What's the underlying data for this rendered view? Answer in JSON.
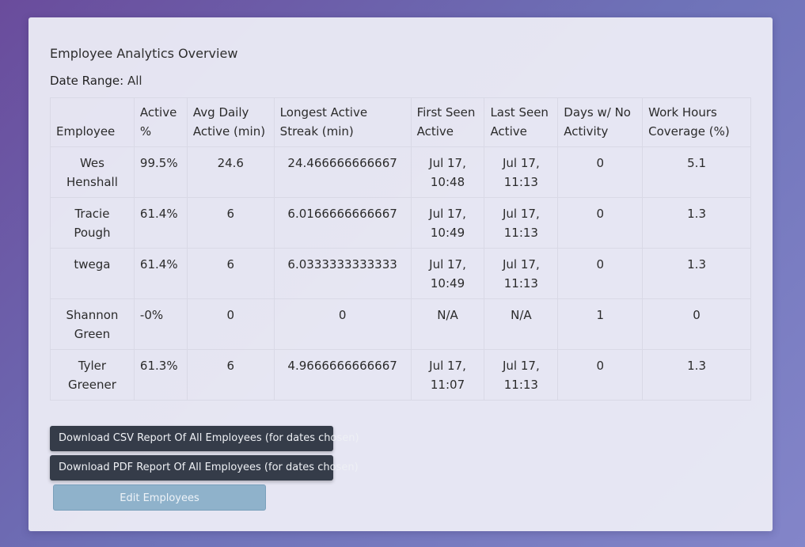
{
  "report": {
    "title": "Employee Analytics Overview",
    "date_range_label": "Date Range:",
    "date_range_value": "All"
  },
  "table": {
    "headers": [
      "Employee",
      "Active %",
      "Avg Daily Active (min)",
      "Longest Active Streak (min)",
      "First Seen Active",
      "Last Seen Active",
      "Days w/ No Activity",
      "Work Hours Coverage (%)"
    ],
    "rows": [
      [
        "Wes Henshall",
        "99.5%",
        "24.6",
        "24.466666666667",
        "Jul 17, 10:48",
        "Jul 17, 11:13",
        "0",
        "5.1"
      ],
      [
        "Tracie Pough",
        "61.4%",
        "6",
        "6.0166666666667",
        "Jul 17, 10:49",
        "Jul 17, 11:13",
        "0",
        "1.3"
      ],
      [
        "twega",
        "61.4%",
        "6",
        "6.0333333333333",
        "Jul 17, 10:49",
        "Jul 17, 11:13",
        "0",
        "1.3"
      ],
      [
        "Shannon Green",
        "-0%",
        "0",
        "0",
        "N/A",
        "N/A",
        "1",
        "0"
      ],
      [
        "Tyler Greener",
        "61.3%",
        "6",
        "4.9666666666667",
        "Jul 17, 11:07",
        "Jul 17, 11:13",
        "0",
        "1.3"
      ]
    ]
  },
  "actions": {
    "csv_label": "Download CSV Report Of All Employees (for dates chosen)",
    "pdf_label": "Download PDF Report Of All Employees (for dates chosen)",
    "edit_label": "Edit Employees"
  },
  "colors": {
    "dark_button": "#353c49",
    "edit_button": "#8fb2cb",
    "panel": "#ececf6"
  }
}
